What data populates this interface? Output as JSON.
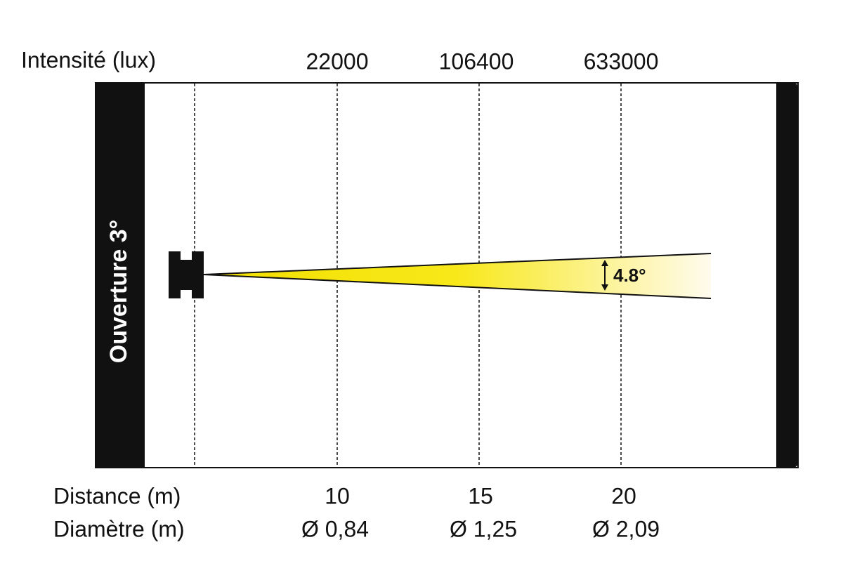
{
  "header": {
    "intensity_label": "Intensité (lux)",
    "intensities": [
      "22000",
      "106400",
      "633000"
    ]
  },
  "beam": {
    "aperture": "Ouverture 3°",
    "angle": "4.8°"
  },
  "footer": {
    "distance_label": "Distance (m)",
    "distances": [
      "10",
      "15",
      "20"
    ],
    "diameter_label": "Diamètre (m)",
    "diameters": [
      "Ø 0,84",
      "Ø 1,25",
      "Ø 2,09"
    ]
  }
}
